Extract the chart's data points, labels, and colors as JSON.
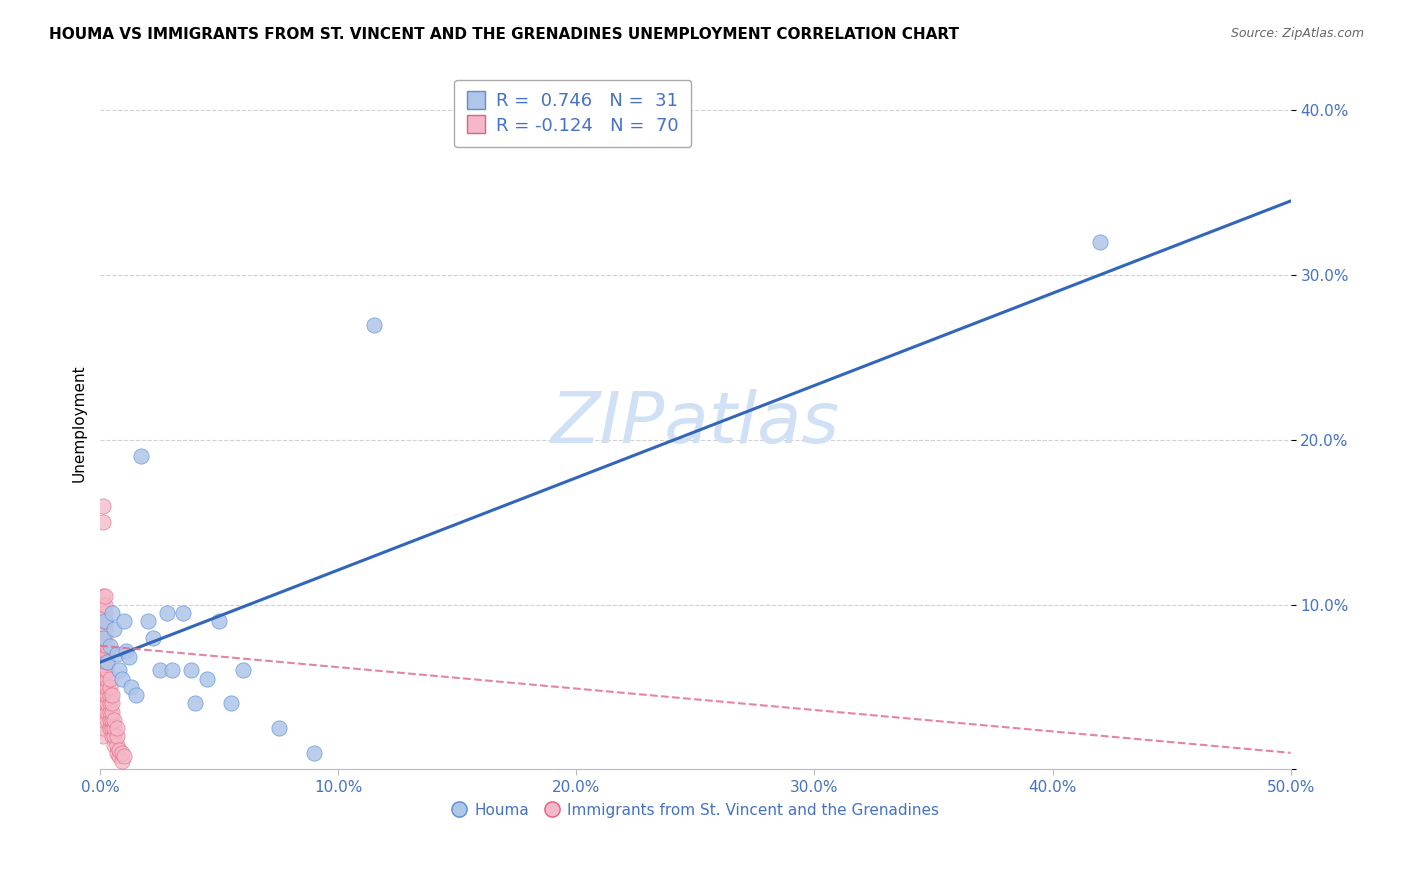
{
  "title": "HOUMA VS IMMIGRANTS FROM ST. VINCENT AND THE GRENADINES UNEMPLOYMENT CORRELATION CHART",
  "source": "Source: ZipAtlas.com",
  "tick_color": "#4472c4",
  "ylabel": "Unemployment",
  "xlim": [
    0.0,
    0.5
  ],
  "ylim": [
    0.0,
    0.42
  ],
  "xticks": [
    0.0,
    0.1,
    0.2,
    0.3,
    0.4,
    0.5
  ],
  "yticks": [
    0.0,
    0.1,
    0.2,
    0.3,
    0.4
  ],
  "xtick_labels": [
    "0.0%",
    "10.0%",
    "20.0%",
    "30.0%",
    "40.0%",
    "50.0%"
  ],
  "ytick_labels": [
    "",
    "10.0%",
    "20.0%",
    "30.0%",
    "40.0%"
  ],
  "houma_color": "#aec6e8",
  "houma_edge_color": "#5b8dd9",
  "pink_color": "#f5b8c8",
  "pink_edge_color": "#e06080",
  "R_houma": 0.746,
  "N_houma": 31,
  "R_pink": -0.124,
  "N_pink": 70,
  "blue_line_color": "#3366bb",
  "pink_line_color": "#e07090",
  "watermark": "ZIPatlas",
  "watermark_color": "#d0e0f5",
  "legend_label_houma": "Houma",
  "legend_label_pink": "Immigrants from St. Vincent and the Grenadines",
  "houma_x": [
    0.001,
    0.002,
    0.003,
    0.004,
    0.005,
    0.006,
    0.007,
    0.008,
    0.009,
    0.01,
    0.011,
    0.012,
    0.013,
    0.015,
    0.017,
    0.02,
    0.022,
    0.025,
    0.028,
    0.03,
    0.035,
    0.038,
    0.04,
    0.045,
    0.05,
    0.055,
    0.06,
    0.075,
    0.09,
    0.115,
    0.42
  ],
  "houma_y": [
    0.08,
    0.09,
    0.065,
    0.075,
    0.095,
    0.085,
    0.07,
    0.06,
    0.055,
    0.09,
    0.072,
    0.068,
    0.05,
    0.045,
    0.19,
    0.09,
    0.08,
    0.06,
    0.095,
    0.06,
    0.095,
    0.06,
    0.04,
    0.055,
    0.09,
    0.04,
    0.06,
    0.025,
    0.01,
    0.27,
    0.32
  ],
  "pink_x": [
    0.001,
    0.001,
    0.001,
    0.001,
    0.001,
    0.001,
    0.001,
    0.001,
    0.001,
    0.001,
    0.001,
    0.001,
    0.001,
    0.001,
    0.001,
    0.001,
    0.001,
    0.001,
    0.001,
    0.001,
    0.002,
    0.002,
    0.002,
    0.002,
    0.002,
    0.002,
    0.002,
    0.002,
    0.002,
    0.002,
    0.002,
    0.002,
    0.002,
    0.002,
    0.003,
    0.003,
    0.003,
    0.003,
    0.003,
    0.003,
    0.003,
    0.003,
    0.003,
    0.003,
    0.004,
    0.004,
    0.004,
    0.004,
    0.004,
    0.004,
    0.004,
    0.005,
    0.005,
    0.005,
    0.005,
    0.005,
    0.005,
    0.006,
    0.006,
    0.006,
    0.006,
    0.007,
    0.007,
    0.007,
    0.007,
    0.008,
    0.008,
    0.009,
    0.009,
    0.01
  ],
  "pink_y": [
    0.02,
    0.025,
    0.03,
    0.035,
    0.04,
    0.045,
    0.05,
    0.055,
    0.06,
    0.065,
    0.07,
    0.075,
    0.08,
    0.085,
    0.09,
    0.095,
    0.1,
    0.105,
    0.15,
    0.16,
    0.04,
    0.045,
    0.05,
    0.055,
    0.06,
    0.065,
    0.07,
    0.075,
    0.08,
    0.085,
    0.09,
    0.095,
    0.1,
    0.105,
    0.03,
    0.035,
    0.04,
    0.045,
    0.05,
    0.055,
    0.06,
    0.065,
    0.07,
    0.075,
    0.025,
    0.03,
    0.035,
    0.04,
    0.045,
    0.05,
    0.055,
    0.02,
    0.025,
    0.03,
    0.035,
    0.04,
    0.045,
    0.015,
    0.02,
    0.025,
    0.03,
    0.01,
    0.015,
    0.02,
    0.025,
    0.008,
    0.012,
    0.005,
    0.01,
    0.008
  ],
  "blue_line_x": [
    0.0,
    0.5
  ],
  "blue_line_y": [
    0.065,
    0.345
  ],
  "pink_line_x": [
    0.0,
    0.5
  ],
  "pink_line_y": [
    0.075,
    0.01
  ]
}
